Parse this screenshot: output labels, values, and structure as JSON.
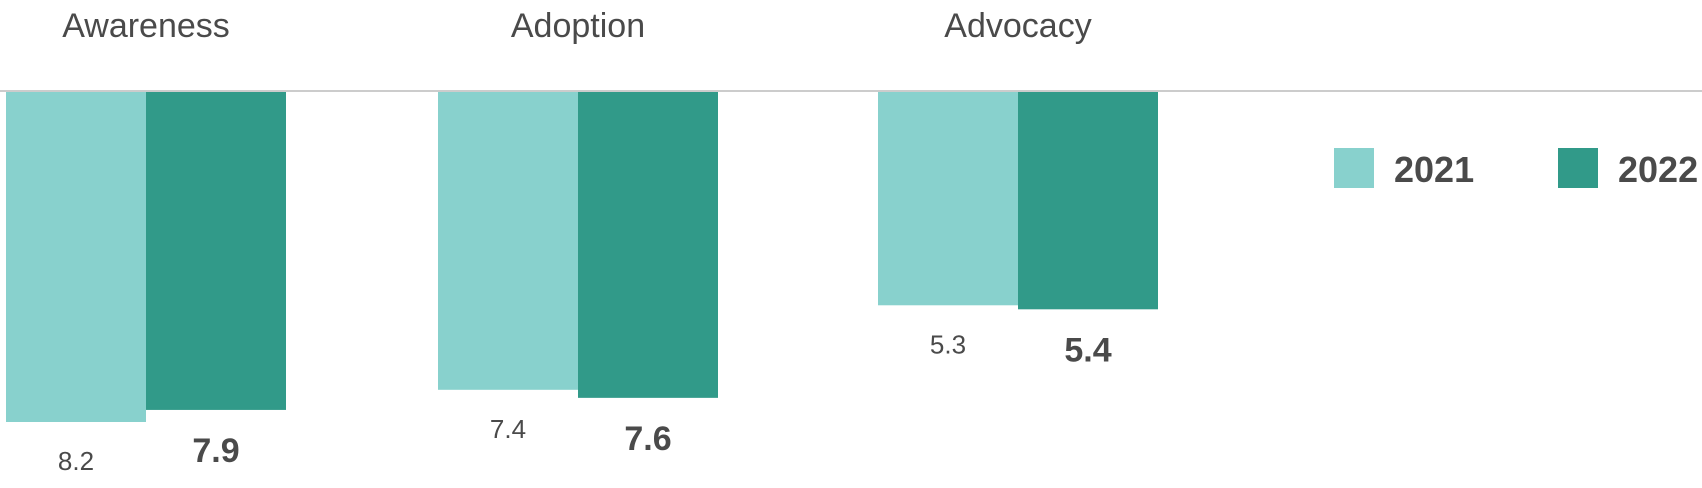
{
  "chart_data": {
    "type": "bar",
    "orientation": "vertical-down",
    "categories": [
      "Awareness",
      "Adoption",
      "Advocacy"
    ],
    "series": [
      {
        "name": "2021",
        "values": [
          8.2,
          7.4,
          5.3
        ],
        "color": "#88d1cd"
      },
      {
        "name": "2022",
        "values": [
          7.9,
          7.6,
          5.4
        ],
        "color": "#319a89"
      }
    ],
    "ylim": [
      0,
      8.2
    ],
    "grid": false,
    "legend_position": "right",
    "baseline_color": "#cccccc"
  }
}
